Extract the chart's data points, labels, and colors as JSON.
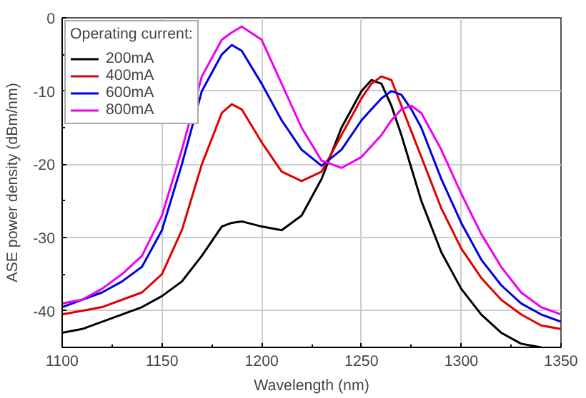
{
  "chart_data": {
    "type": "line",
    "xlabel": "Wavelength (nm)",
    "ylabel": "ASE power density (dBm/nm)",
    "legend_title": "Operating current:",
    "legend": "top left",
    "grid": true,
    "x": [
      1100,
      1110,
      1120,
      1130,
      1140,
      1150,
      1160,
      1170,
      1180,
      1185,
      1190,
      1200,
      1210,
      1220,
      1230,
      1240,
      1250,
      1255,
      1260,
      1265,
      1270,
      1275,
      1280,
      1290,
      1300,
      1310,
      1320,
      1330,
      1340,
      1350
    ],
    "xlim": [
      1100,
      1350
    ],
    "ylim": [
      -45,
      0
    ],
    "xticks": [
      1100,
      1150,
      1200,
      1250,
      1300,
      1350
    ],
    "yticks": [
      -40,
      -30,
      -20,
      -10,
      0
    ],
    "series": [
      {
        "name": "200mA",
        "color": "#000000",
        "values": [
          -43,
          -42.5,
          -41.5,
          -40.5,
          -39.5,
          -38,
          -36,
          -32.5,
          -28.5,
          -28,
          -27.8,
          -28.5,
          -29,
          -27,
          -22,
          -15,
          -10,
          -8.5,
          -9,
          -12,
          -16,
          -20.5,
          -25,
          -32,
          -37,
          -40.5,
          -43,
          -44.5,
          -45,
          null
        ]
      },
      {
        "name": "400mA",
        "color": "#e00000",
        "values": [
          -40.5,
          -40,
          -39.5,
          -38.5,
          -37.5,
          -35,
          -29,
          -20,
          -13,
          -11.8,
          -12.5,
          -17,
          -21,
          -22.3,
          -21,
          -16,
          -11,
          -9,
          -8,
          -8.5,
          -12,
          -15.5,
          -19,
          -26,
          -31.5,
          -35.5,
          -38.5,
          -40.5,
          -42,
          -42.5
        ]
      },
      {
        "name": "600mA",
        "color": "#0000e0",
        "values": [
          -39.5,
          -38.5,
          -37.5,
          -36,
          -34,
          -29,
          -20,
          -10,
          -5,
          -3.7,
          -4.5,
          -9,
          -14,
          -18,
          -20.2,
          -18,
          -14,
          -12.5,
          -11,
          -10,
          -10.5,
          -12.5,
          -15,
          -22,
          -28,
          -33,
          -36.5,
          -39,
          -40.5,
          -41.5
        ]
      },
      {
        "name": "800mA",
        "color": "#ee00ee",
        "values": [
          -39,
          -38.5,
          -37,
          -35,
          -32.5,
          -27,
          -18,
          -8,
          -3,
          -2,
          -1.2,
          -3,
          -9,
          -15,
          -19.5,
          -20.5,
          -19,
          -17.5,
          -16,
          -14,
          -12.5,
          -12,
          -13,
          -18,
          -24,
          -29.5,
          -34,
          -37.5,
          -39.5,
          -40.5
        ]
      }
    ]
  }
}
